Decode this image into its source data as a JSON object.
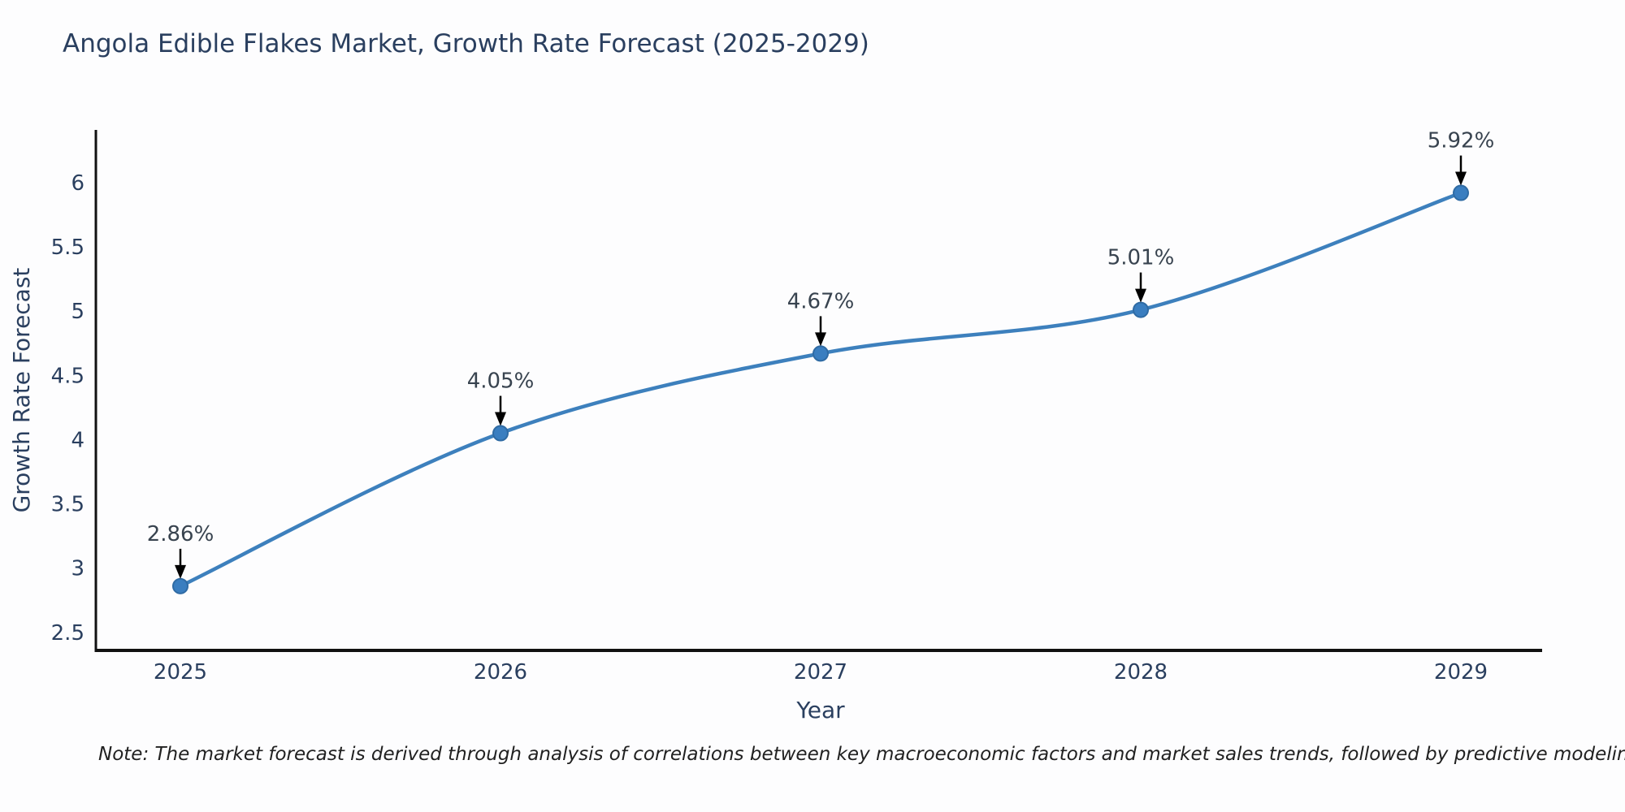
{
  "title": "Angola Edible Flakes Market, Growth Rate Forecast (2025-2029)",
  "note": "Note: The market forecast is derived through analysis of correlations between key macroeconomic factors and market sales trends, followed by predictive modeling to project future sales",
  "chart_data": {
    "type": "line",
    "title": "Angola Edible Flakes Market, Growth Rate Forecast (2025-2029)",
    "xlabel": "Year",
    "ylabel": "Growth Rate Forecast",
    "x": [
      2025,
      2026,
      2027,
      2028,
      2029
    ],
    "series": [
      {
        "name": "Growth Rate Forecast",
        "values": [
          2.86,
          4.05,
          4.67,
          5.01,
          5.92
        ],
        "point_labels": [
          "2.86%",
          "4.05%",
          "4.67%",
          "5.01%",
          "5.92%"
        ]
      }
    ],
    "yticks": [
      2.5,
      3,
      3.5,
      4,
      4.5,
      5,
      5.5,
      6
    ],
    "ylim": [
      2.36,
      6.41
    ],
    "grid": false,
    "legend_position": "none",
    "colors": {
      "line": "#3d80bd",
      "marker_fill": "#3a7ec0",
      "marker_edge": "#2f6ba4",
      "axis_line": "#111111",
      "label_text": "#2a3f5f",
      "annotation_text": "#38434f",
      "annotation_arrow": "#000000",
      "note_text": "#212121",
      "background": "#fdfdfe"
    }
  }
}
